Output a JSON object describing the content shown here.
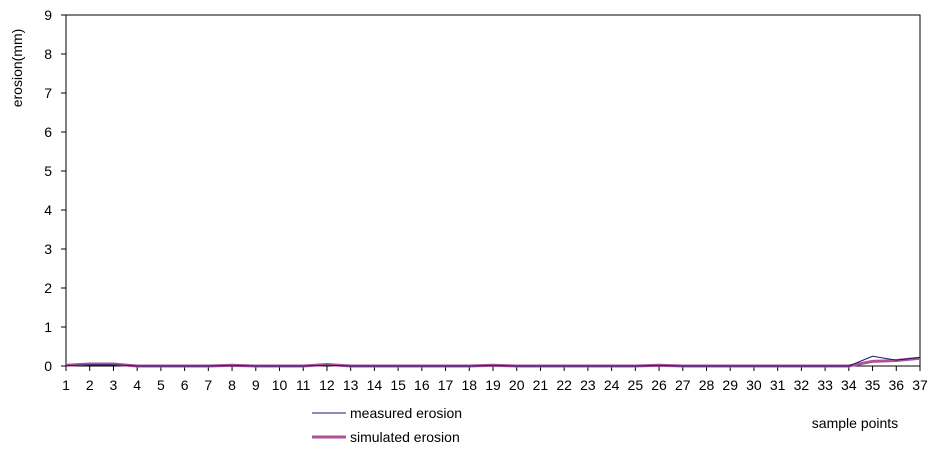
{
  "chart_data": {
    "type": "line",
    "title": "",
    "xlabel": "sample points",
    "ylabel": "erosion(mm)",
    "ylim": [
      0,
      9
    ],
    "yticks": [
      "0",
      "1",
      "2",
      "3",
      "4",
      "5",
      "6",
      "7",
      "8",
      "9"
    ],
    "categories": [
      "1",
      "2",
      "3",
      "4",
      "5",
      "6",
      "7",
      "8",
      "9",
      "10",
      "11",
      "12",
      "13",
      "14",
      "15",
      "16",
      "17",
      "18",
      "19",
      "20",
      "21",
      "22",
      "23",
      "24",
      "25",
      "26",
      "27",
      "28",
      "29",
      "30",
      "31",
      "32",
      "33",
      "34",
      "35",
      "36",
      "37"
    ],
    "grid": false,
    "legend_position": "bottom-center",
    "series": [
      {
        "name": "measured erosion",
        "color": "#1a1a6e",
        "values": [
          0.01,
          0.03,
          0.03,
          0,
          0,
          0,
          0,
          0.01,
          0,
          0,
          0,
          0.02,
          0,
          0,
          0,
          0,
          0,
          0,
          0.01,
          0,
          0,
          0,
          0,
          0,
          0,
          0.01,
          0,
          0,
          0,
          0,
          0,
          0,
          0,
          0,
          0.25,
          0.15,
          0.22
        ]
      },
      {
        "name": "simulated erosion",
        "color": "#b0529a",
        "values": [
          0.02,
          0.05,
          0.05,
          0,
          0,
          0,
          0,
          0.02,
          0,
          0,
          0,
          0.04,
          0,
          0,
          0,
          0,
          0,
          0,
          0.02,
          0,
          0,
          0,
          0,
          0,
          0,
          0.02,
          0,
          0,
          0,
          0,
          0,
          0,
          0,
          0,
          0.12,
          0.14,
          0.2
        ]
      }
    ]
  }
}
